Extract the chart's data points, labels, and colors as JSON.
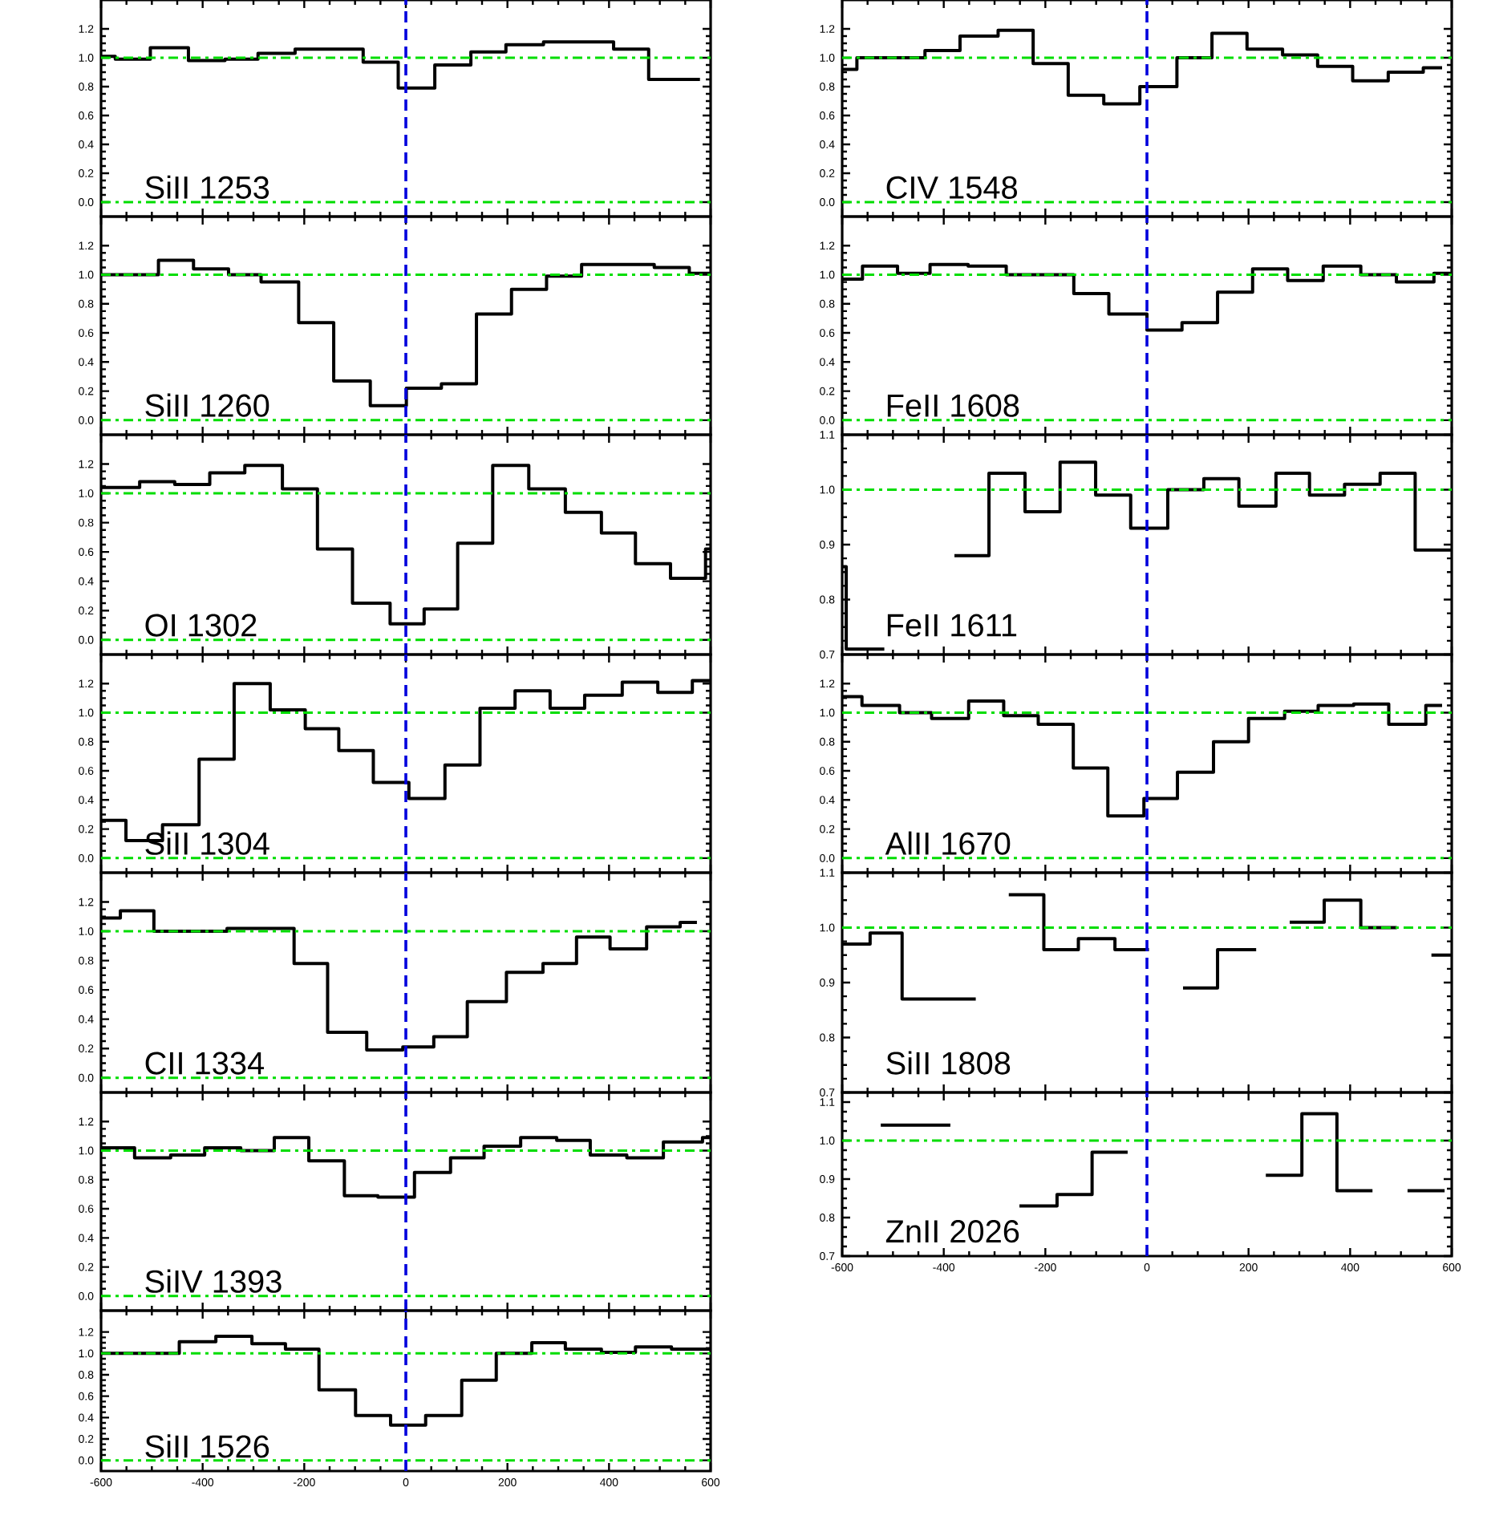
{
  "chart_data": [
    {
      "type": "step",
      "color": "#000000",
      "xlim": [
        -600,
        600
      ],
      "xticks": [
        -600,
        -400,
        -200,
        0,
        200,
        400,
        600
      ],
      "ylim": [
        -0.1,
        1.4
      ],
      "yticks": [
        {
          "value": 0,
          "label": "0.0"
        },
        {
          "value": 0.2,
          "label": "0.2"
        },
        {
          "value": 0.4,
          "label": "0.4"
        },
        {
          "value": 0.6,
          "label": "0.6"
        },
        {
          "value": 0.8,
          "label": "0.8"
        },
        {
          "value": 1,
          "label": "1.0"
        },
        {
          "value": 1.2,
          "label": "1.2"
        }
      ],
      "tick_labels": "y",
      "annotations": [
        "SiII 1253"
      ],
      "x": [
        -600,
        -572,
        -503,
        -428,
        -356,
        -291,
        -218,
        -84,
        -15,
        57,
        128,
        197,
        271,
        409,
        478,
        579
      ],
      "values": [
        1.01,
        0.99,
        1.07,
        0.98,
        0.99,
        1.03,
        1.06,
        0.97,
        0.79,
        0.95,
        1.04,
        1.09,
        1.11,
        1.06,
        0.85,
        0.85
      ],
      "ref_lines": [
        {
          "axis": "y",
          "value": 1,
          "color": "#00dd00",
          "line_style": "dashdot"
        },
        {
          "axis": "y",
          "value": 0,
          "color": "#00dd00",
          "line_style": "dashdot"
        },
        {
          "axis": "x",
          "value": 0,
          "color": "#0000dd",
          "line_style": "dashed"
        }
      ]
    },
    {
      "type": "step",
      "color": "#000000",
      "xlim": [
        -600,
        600
      ],
      "xticks": [
        -600,
        -400,
        -200,
        0,
        200,
        400,
        600
      ],
      "ylim": [
        -0.1,
        1.4
      ],
      "yticks": [
        {
          "value": 0,
          "label": "0.0"
        },
        {
          "value": 0.2,
          "label": "0.2"
        },
        {
          "value": 0.4,
          "label": "0.4"
        },
        {
          "value": 0.6,
          "label": "0.6"
        },
        {
          "value": 0.8,
          "label": "0.8"
        },
        {
          "value": 1,
          "label": "1.0"
        },
        {
          "value": 1.2,
          "label": "1.2"
        }
      ],
      "tick_labels": "y",
      "annotations": [
        "SiII 1260"
      ],
      "x": [
        -600,
        -487,
        -418,
        -349,
        -285,
        -211,
        -142,
        -70,
        1,
        70,
        139,
        208,
        277,
        346,
        489,
        558,
        600
      ],
      "values": [
        1.0,
        1.1,
        1.04,
        1.0,
        0.95,
        0.67,
        0.27,
        0.1,
        0.22,
        0.25,
        0.73,
        0.9,
        0.99,
        1.07,
        1.05,
        1.01,
        1.01
      ],
      "ref_lines": [
        {
          "axis": "y",
          "value": 1,
          "color": "#00dd00",
          "line_style": "dashdot"
        },
        {
          "axis": "y",
          "value": 0,
          "color": "#00dd00",
          "line_style": "dashdot"
        },
        {
          "axis": "x",
          "value": 0,
          "color": "#0000dd",
          "line_style": "dashed"
        }
      ]
    },
    {
      "type": "step",
      "color": "#000000",
      "xlim": [
        -600,
        600
      ],
      "xticks": [
        -600,
        -400,
        -200,
        0,
        200,
        400,
        600
      ],
      "ylim": [
        -0.1,
        1.4
      ],
      "yticks": [
        {
          "value": 0,
          "label": "0.0"
        },
        {
          "value": 0.2,
          "label": "0.2"
        },
        {
          "value": 0.4,
          "label": "0.4"
        },
        {
          "value": 0.6,
          "label": "0.6"
        },
        {
          "value": 0.8,
          "label": "0.8"
        },
        {
          "value": 1,
          "label": "1.0"
        },
        {
          "value": 1.2,
          "label": "1.2"
        }
      ],
      "tick_labels": "y",
      "annotations": [
        "OI 1302"
      ],
      "x": [
        -600,
        -524,
        -455,
        -386,
        -317,
        -243,
        -174,
        -105,
        -31,
        36,
        102,
        171,
        242,
        314,
        385,
        452,
        521,
        590,
        600
      ],
      "values": [
        1.04,
        1.08,
        1.06,
        1.14,
        1.19,
        1.03,
        0.62,
        0.25,
        0.11,
        0.21,
        0.66,
        1.19,
        1.03,
        0.87,
        0.73,
        0.52,
        0.42,
        0.62,
        0.62
      ],
      "ref_lines": [
        {
          "axis": "y",
          "value": 1,
          "color": "#00dd00",
          "line_style": "dashdot"
        },
        {
          "axis": "y",
          "value": 0,
          "color": "#00dd00",
          "line_style": "dashdot"
        },
        {
          "axis": "x",
          "value": 0,
          "color": "#0000dd",
          "line_style": "dashed"
        }
      ]
    },
    {
      "type": "step",
      "color": "#000000",
      "xlim": [
        -600,
        600
      ],
      "xticks": [
        -600,
        -400,
        -200,
        0,
        200,
        400,
        600
      ],
      "ylim": [
        -0.1,
        1.4
      ],
      "yticks": [
        {
          "value": 0,
          "label": "0.0"
        },
        {
          "value": 0.2,
          "label": "0.2"
        },
        {
          "value": 0.4,
          "label": "0.4"
        },
        {
          "value": 0.6,
          "label": "0.6"
        },
        {
          "value": 0.8,
          "label": "0.8"
        },
        {
          "value": 1,
          "label": "1.0"
        },
        {
          "value": 1.2,
          "label": "1.2"
        }
      ],
      "tick_labels": "y",
      "annotations": [
        "SiII 1304"
      ],
      "x": [
        -600,
        -551,
        -479,
        -407,
        -338,
        -267,
        -198,
        -132,
        -64,
        6,
        77,
        146,
        215,
        284,
        352,
        426,
        496,
        564,
        600
      ],
      "values": [
        0.26,
        0.12,
        0.23,
        0.68,
        1.2,
        1.02,
        0.89,
        0.74,
        0.52,
        0.41,
        0.64,
        1.03,
        1.15,
        1.03,
        1.12,
        1.21,
        1.14,
        1.22,
        1.22
      ],
      "ref_lines": [
        {
          "axis": "y",
          "value": 1,
          "color": "#00dd00",
          "line_style": "dashdot"
        },
        {
          "axis": "y",
          "value": 0,
          "color": "#00dd00",
          "line_style": "dashdot"
        },
        {
          "axis": "x",
          "value": 0,
          "color": "#0000dd",
          "line_style": "dashed"
        }
      ]
    },
    {
      "type": "step",
      "color": "#000000",
      "xlim": [
        -600,
        600
      ],
      "xticks": [
        -600,
        -400,
        -200,
        0,
        200,
        400,
        600
      ],
      "ylim": [
        -0.1,
        1.4
      ],
      "yticks": [
        {
          "value": 0,
          "label": "0.0"
        },
        {
          "value": 0.2,
          "label": "0.2"
        },
        {
          "value": 0.4,
          "label": "0.4"
        },
        {
          "value": 0.6,
          "label": "0.6"
        },
        {
          "value": 0.8,
          "label": "0.8"
        },
        {
          "value": 1,
          "label": "1.0"
        },
        {
          "value": 1.2,
          "label": "1.2"
        }
      ],
      "tick_labels": "y",
      "annotations": [
        "CII 1334"
      ],
      "x": [
        -600,
        -562,
        -496,
        -352,
        -220,
        -154,
        -77,
        -6,
        55,
        121,
        198,
        270,
        336,
        402,
        474,
        540,
        573
      ],
      "values": [
        1.09,
        1.14,
        1.0,
        1.02,
        0.78,
        0.31,
        0.19,
        0.21,
        0.28,
        0.52,
        0.72,
        0.78,
        0.96,
        0.88,
        1.03,
        1.06,
        1.06
      ],
      "ref_lines": [
        {
          "axis": "y",
          "value": 1,
          "color": "#00dd00",
          "line_style": "dashdot"
        },
        {
          "axis": "y",
          "value": 0,
          "color": "#00dd00",
          "line_style": "dashdot"
        },
        {
          "axis": "x",
          "value": 0,
          "color": "#0000dd",
          "line_style": "dashed"
        }
      ]
    },
    {
      "type": "step",
      "color": "#000000",
      "xlim": [
        -600,
        600
      ],
      "xticks": [
        -600,
        -400,
        -200,
        0,
        200,
        400,
        600
      ],
      "ylim": [
        -0.1,
        1.4
      ],
      "yticks": [
        {
          "value": 0,
          "label": "0.0"
        },
        {
          "value": 0.2,
          "label": "0.2"
        },
        {
          "value": 0.4,
          "label": "0.4"
        },
        {
          "value": 0.6,
          "label": "0.6"
        },
        {
          "value": 0.8,
          "label": "0.8"
        },
        {
          "value": 1,
          "label": "1.0"
        },
        {
          "value": 1.2,
          "label": "1.2"
        }
      ],
      "tick_labels": "y",
      "annotations": [
        "SiIV 1393"
      ],
      "x": [
        -600,
        -534,
        -463,
        -396,
        -325,
        -259,
        -191,
        -121,
        -55,
        17,
        88,
        154,
        226,
        297,
        363,
        435,
        507,
        584,
        600
      ],
      "values": [
        1.02,
        0.95,
        0.97,
        1.02,
        1.0,
        1.09,
        0.93,
        0.69,
        0.68,
        0.85,
        0.95,
        1.03,
        1.09,
        1.07,
        0.97,
        0.95,
        1.06,
        1.09,
        1.09
      ],
      "ref_lines": [
        {
          "axis": "y",
          "value": 1,
          "color": "#00dd00",
          "line_style": "dashdot"
        },
        {
          "axis": "y",
          "value": 0,
          "color": "#00dd00",
          "line_style": "dashdot"
        },
        {
          "axis": "x",
          "value": 0,
          "color": "#0000dd",
          "line_style": "dashed"
        }
      ]
    },
    {
      "type": "step",
      "color": "#000000",
      "xlim": [
        -600,
        600
      ],
      "xticks": [
        -600,
        -400,
        -200,
        0,
        200,
        400,
        600
      ],
      "ylim": [
        -0.1,
        1.4
      ],
      "yticks": [
        {
          "value": 0,
          "label": "0.0"
        },
        {
          "value": 0.2,
          "label": "0.2"
        },
        {
          "value": 0.4,
          "label": "0.4"
        },
        {
          "value": 0.6,
          "label": "0.6"
        },
        {
          "value": 0.8,
          "label": "0.8"
        },
        {
          "value": 1,
          "label": "1.0"
        },
        {
          "value": 1.2,
          "label": "1.2"
        }
      ],
      "annotations": [
        "SiII 1526"
      ],
      "x": [
        -600,
        -446,
        -374,
        -303,
        -237,
        -171,
        -99,
        -30,
        39,
        110,
        178,
        248,
        314,
        385,
        452,
        523,
        600
      ],
      "values": [
        1.0,
        1.11,
        1.16,
        1.09,
        1.04,
        0.66,
        0.42,
        0.33,
        0.42,
        0.75,
        1.0,
        1.1,
        1.04,
        1.01,
        1.06,
        1.04,
        1.04
      ],
      "ref_lines": [
        {
          "axis": "y",
          "value": 1,
          "color": "#00dd00",
          "line_style": "dashdot"
        },
        {
          "axis": "y",
          "value": 0,
          "color": "#00dd00",
          "line_style": "dashdot"
        },
        {
          "axis": "x",
          "value": 0,
          "color": "#0000dd",
          "line_style": "dashed"
        }
      ]
    },
    {
      "type": "step",
      "color": "#000000",
      "xlim": [
        -600,
        600
      ],
      "xticks": [
        -600,
        -400,
        -200,
        0,
        200,
        400,
        600
      ],
      "ylim": [
        -0.1,
        1.4
      ],
      "yticks": [
        {
          "value": 0,
          "label": "0.0"
        },
        {
          "value": 0.2,
          "label": "0.2"
        },
        {
          "value": 0.4,
          "label": "0.4"
        },
        {
          "value": 0.6,
          "label": "0.6"
        },
        {
          "value": 0.8,
          "label": "0.8"
        },
        {
          "value": 1,
          "label": "1.0"
        },
        {
          "value": 1.2,
          "label": "1.2"
        }
      ],
      "tick_labels": "y",
      "annotations": [
        "CIV 1548"
      ],
      "x": [
        -600,
        -571,
        -437,
        -368,
        -293,
        -224,
        -155,
        -85,
        -14,
        59,
        128,
        197,
        267,
        336,
        405,
        475,
        544,
        581
      ],
      "values": [
        0.92,
        1.0,
        1.05,
        1.15,
        1.19,
        0.96,
        0.74,
        0.68,
        0.8,
        1.0,
        1.17,
        1.06,
        1.02,
        0.94,
        0.84,
        0.9,
        0.93,
        0.93
      ],
      "ref_lines": [
        {
          "axis": "y",
          "value": 1,
          "color": "#00dd00",
          "line_style": "dashdot"
        },
        {
          "axis": "y",
          "value": 0,
          "color": "#00dd00",
          "line_style": "dashdot"
        },
        {
          "axis": "x",
          "value": 0,
          "color": "#0000dd",
          "line_style": "dashed"
        }
      ]
    },
    {
      "type": "step",
      "color": "#000000",
      "xlim": [
        -600,
        600
      ],
      "xticks": [
        -600,
        -400,
        -200,
        0,
        200,
        400,
        600
      ],
      "ylim": [
        -0.1,
        1.4
      ],
      "yticks": [
        {
          "value": 0,
          "label": "0.0"
        },
        {
          "value": 0.2,
          "label": "0.2"
        },
        {
          "value": 0.4,
          "label": "0.4"
        },
        {
          "value": 0.6,
          "label": "0.6"
        },
        {
          "value": 0.8,
          "label": "0.8"
        },
        {
          "value": 1,
          "label": "1.0"
        },
        {
          "value": 1.2,
          "label": "1.2"
        }
      ],
      "tick_labels": "y",
      "annotations": [
        "FeII 1608"
      ],
      "x": [
        -600,
        -560,
        -491,
        -427,
        -352,
        -277,
        -208,
        -144,
        -75,
        0,
        69,
        139,
        208,
        277,
        347,
        421,
        491,
        565,
        600
      ],
      "values": [
        0.97,
        1.06,
        1.01,
        1.07,
        1.06,
        1.0,
        1.0,
        0.87,
        0.73,
        0.62,
        0.67,
        0.88,
        1.04,
        0.96,
        1.06,
        1.0,
        0.95,
        1.01,
        1.01
      ],
      "ref_lines": [
        {
          "axis": "y",
          "value": 1,
          "color": "#00dd00",
          "line_style": "dashdot"
        },
        {
          "axis": "y",
          "value": 0,
          "color": "#00dd00",
          "line_style": "dashdot"
        },
        {
          "axis": "x",
          "value": 0,
          "color": "#0000dd",
          "line_style": "dashed"
        }
      ]
    },
    {
      "type": "step",
      "color": "#000000",
      "xlim": [
        -600,
        600
      ],
      "xticks": [
        -600,
        -400,
        -200,
        0,
        200,
        400,
        600
      ],
      "ylim": [
        0.7,
        1.1
      ],
      "yticks": [
        0.7,
        0.8,
        0.9,
        {
          "value": 1,
          "label": "1.0"
        },
        1.1
      ],
      "tick_labels": "y",
      "annotations": [
        "FeII 1611"
      ],
      "x": [
        -600,
        -592,
        -517,
        -379,
        -311,
        -240,
        -171,
        -101,
        -32,
        41,
        112,
        181,
        254,
        320,
        389,
        459,
        528,
        600
      ],
      "values": [
        0.86,
        0.71,
        null,
        0.88,
        1.03,
        0.96,
        1.05,
        0.99,
        0.93,
        1.0,
        1.02,
        0.97,
        1.03,
        0.99,
        1.01,
        1.03,
        0.89,
        0.89
      ],
      "ref_lines": [
        {
          "axis": "y",
          "value": 1,
          "color": "#00dd00",
          "line_style": "dashdot"
        },
        {
          "axis": "x",
          "value": 0,
          "color": "#0000dd",
          "line_style": "dashed"
        }
      ]
    },
    {
      "type": "step",
      "color": "#000000",
      "xlim": [
        -600,
        600
      ],
      "xticks": [
        -600,
        -400,
        -200,
        0,
        200,
        400,
        600
      ],
      "ylim": [
        -0.1,
        1.4
      ],
      "yticks": [
        {
          "value": 0,
          "label": "0.0"
        },
        {
          "value": 0.2,
          "label": "0.2"
        },
        {
          "value": 0.4,
          "label": "0.4"
        },
        {
          "value": 0.6,
          "label": "0.6"
        },
        {
          "value": 0.8,
          "label": "0.8"
        },
        {
          "value": 1,
          "label": "1.0"
        },
        {
          "value": 1.2,
          "label": "1.2"
        }
      ],
      "tick_labels": "y",
      "annotations": [
        "AlII 1670"
      ],
      "x": [
        -600,
        -561,
        -487,
        -424,
        -351,
        -282,
        -214,
        -145,
        -77,
        -6,
        60,
        131,
        200,
        271,
        337,
        407,
        476,
        549,
        581
      ],
      "values": [
        1.11,
        1.05,
        1.0,
        0.96,
        1.08,
        0.98,
        0.92,
        0.62,
        0.29,
        0.41,
        0.59,
        0.8,
        0.96,
        1.01,
        1.05,
        1.06,
        0.92,
        1.05,
        1.05
      ],
      "ref_lines": [
        {
          "axis": "y",
          "value": 1,
          "color": "#00dd00",
          "line_style": "dashdot"
        },
        {
          "axis": "y",
          "value": 0,
          "color": "#00dd00",
          "line_style": "dashdot"
        },
        {
          "axis": "x",
          "value": 0,
          "color": "#0000dd",
          "line_style": "dashed"
        }
      ]
    },
    {
      "type": "step",
      "color": "#000000",
      "xlim": [
        -600,
        600
      ],
      "xticks": [
        -600,
        -400,
        -200,
        0,
        200,
        400,
        600
      ],
      "ylim": [
        0.7,
        1.1
      ],
      "yticks": [
        0.7,
        0.8,
        0.9,
        {
          "value": 1,
          "label": "1.0"
        },
        1.1
      ],
      "tick_labels": "y",
      "annotations": [
        "SiII 1808"
      ],
      "x": [
        -600,
        -545,
        -482,
        -406,
        -337,
        -272,
        -203,
        -135,
        -63,
        4,
        71,
        139,
        215,
        281,
        349,
        421,
        492,
        560,
        600
      ],
      "values": [
        0.97,
        0.99,
        0.87,
        0.87,
        null,
        1.06,
        0.96,
        0.98,
        0.96,
        null,
        0.89,
        0.96,
        null,
        1.01,
        1.05,
        1.0,
        null,
        0.95,
        0.95
      ],
      "ref_lines": [
        {
          "axis": "y",
          "value": 1,
          "color": "#00dd00",
          "line_style": "dashdot"
        },
        {
          "axis": "x",
          "value": 0,
          "color": "#0000dd",
          "line_style": "dashed"
        }
      ]
    },
    {
      "type": "step",
      "color": "#000000",
      "xlim": [
        -600,
        600
      ],
      "xticks": [
        -600,
        -400,
        -200,
        0,
        200,
        400,
        600
      ],
      "ylim": [
        0.7,
        1.125
      ],
      "yticks": [
        0.7,
        0.8,
        0.9,
        {
          "value": 1,
          "label": "1.0"
        },
        1.1
      ],
      "annotations": [
        "ZnII 2026"
      ],
      "x": [
        -524,
        -387,
        -251,
        -177,
        -108,
        -38,
        234,
        305,
        374,
        444,
        513,
        586
      ],
      "values": [
        1.04,
        null,
        0.83,
        0.86,
        0.97,
        null,
        0.91,
        1.07,
        0.87,
        null,
        0.87,
        0.87
      ],
      "ref_lines": [
        {
          "axis": "y",
          "value": 1,
          "color": "#00dd00",
          "line_style": "dashdot"
        },
        {
          "axis": "x",
          "value": 0,
          "color": "#0000dd",
          "line_style": "dashed"
        }
      ]
    }
  ]
}
